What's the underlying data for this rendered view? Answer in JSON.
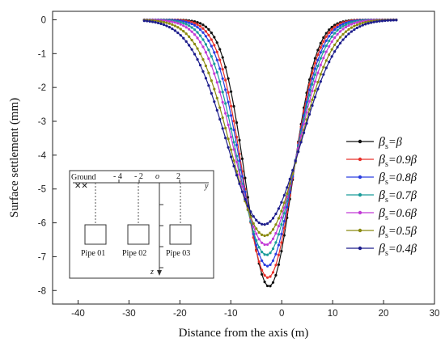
{
  "chart_data": {
    "type": "line",
    "xlabel": "Distance from the axis (m)",
    "ylabel": "Surface settlement (mm)",
    "xlim": [
      -45,
      30
    ],
    "ylim": [
      -8.4,
      0.25
    ],
    "x_ticks": [
      -40,
      -30,
      -20,
      -10,
      0,
      10,
      20,
      30
    ],
    "y_ticks": [
      0,
      -1,
      -2,
      -3,
      -4,
      -5,
      -6,
      -7,
      -8
    ],
    "x_range": [
      -27,
      23
    ],
    "grid": false,
    "legend_position": "right",
    "series": [
      {
        "name_main": "β",
        "name_sub": "s",
        "name_rest": "=β",
        "color": "#111111",
        "min_x": -2.5,
        "peak": -7.88,
        "width": 4.6
      },
      {
        "name_main": "β",
        "name_sub": "s",
        "name_rest": "=0.9β",
        "color": "#e8302a",
        "min_x": -2.7,
        "peak": -7.62,
        "width": 4.9
      },
      {
        "name_main": "β",
        "name_sub": "s",
        "name_rest": "=0.8β",
        "color": "#2a3de0",
        "min_x": -2.8,
        "peak": -7.28,
        "width": 5.2
      },
      {
        "name_main": "β",
        "name_sub": "s",
        "name_rest": "=0.7β",
        "color": "#1a9c9a",
        "min_x": -3.0,
        "peak": -6.95,
        "width": 5.6
      },
      {
        "name_main": "β",
        "name_sub": "s",
        "name_rest": "=0.6β",
        "color": "#c23ad6",
        "min_x": -3.1,
        "peak": -6.65,
        "width": 6.0
      },
      {
        "name_main": "β",
        "name_sub": "s",
        "name_rest": "=0.5β",
        "color": "#8a8a10",
        "min_x": -3.3,
        "peak": -6.38,
        "width": 6.6
      },
      {
        "name_main": "β",
        "name_sub": "s",
        "name_rest": "=0.4β",
        "color": "#1c1c8c",
        "min_x": -3.5,
        "peak": -6.05,
        "width": 7.2
      }
    ]
  },
  "inset": {
    "ground_label": "Ground",
    "tick_labels": [
      "- 4",
      "- 2",
      "o",
      "2"
    ],
    "y_axis_label": "y",
    "z_axis_label": "z",
    "pipes": [
      "Pipe 01",
      "Pipe 02",
      "Pipe 03"
    ]
  }
}
